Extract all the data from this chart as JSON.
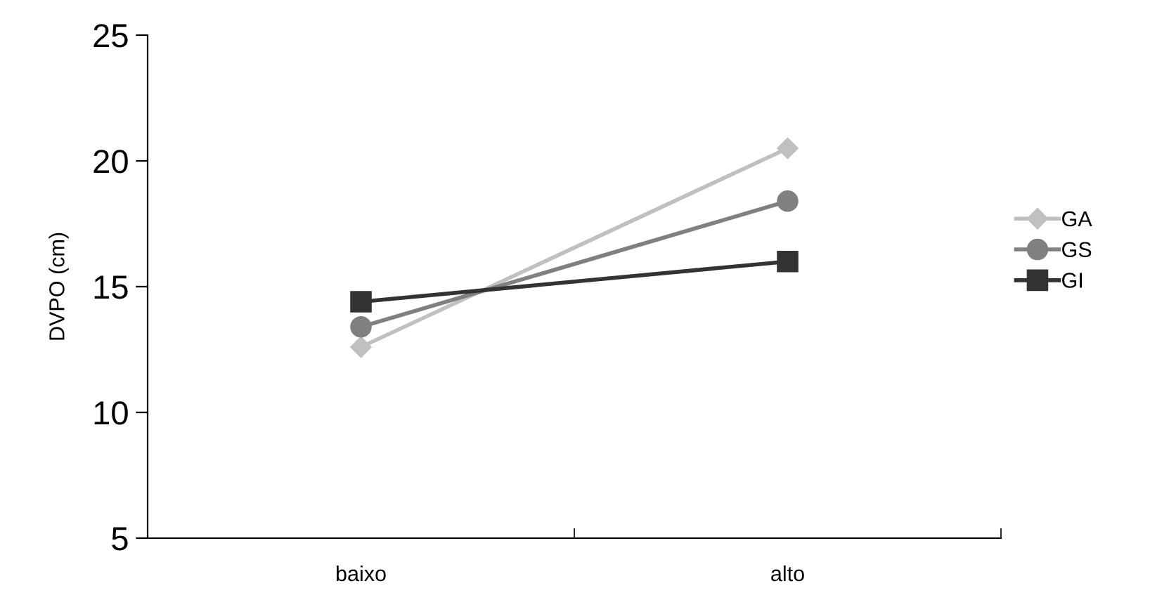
{
  "chart_data": {
    "type": "line",
    "ylabel": "DVPO (cm)",
    "categories": [
      "baixo",
      "alto"
    ],
    "series": [
      {
        "name": "GA",
        "color": "#c0c0c0",
        "marker": "diamond",
        "values": [
          12.6,
          20.5
        ]
      },
      {
        "name": "GS",
        "color": "#808080",
        "marker": "circle",
        "values": [
          13.4,
          18.4
        ]
      },
      {
        "name": "GI",
        "color": "#333333",
        "marker": "square",
        "values": [
          14.4,
          16.0
        ]
      }
    ],
    "ylim": [
      5,
      25
    ],
    "yticks": [
      5,
      10,
      15,
      20,
      25
    ],
    "grid": false,
    "legend": "right",
    "line_style": "solid"
  }
}
